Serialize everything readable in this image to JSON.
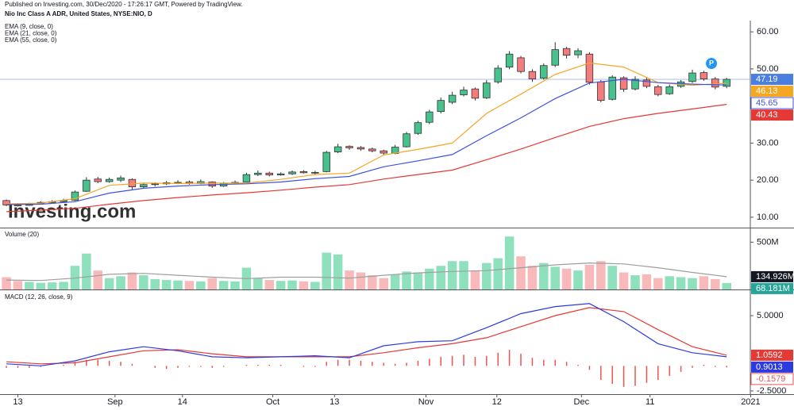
{
  "header": {
    "published": "Published on Investing.com, 30/Dec/2020 - 17:26:17 GMT, Powered by TradingView."
  },
  "watermark": "Investing.com",
  "chart_data": [
    {
      "type": "candlestick",
      "title": "Nio Inc Class A ADR, United States, NYSE:NIO, D",
      "marker_label": "P",
      "up_color": "#46c38c",
      "down_color": "#f47c7c",
      "last_color": "#4a7fe0",
      "xlim": [
        -0.56,
        65.07
      ],
      "ylim": [
        7.2,
        62.6
      ],
      "yticks": [
        {
          "value": 10,
          "label": "10.00"
        },
        {
          "value": 20,
          "label": "20.00"
        },
        {
          "value": 30,
          "label": "30.00"
        },
        {
          "value": 40,
          "label": "40.00"
        },
        {
          "value": 50,
          "label": "50.00"
        },
        {
          "value": 60,
          "label": "60.00"
        }
      ],
      "candles": [
        [
          14.5,
          14.8,
          13.0,
          13.3
        ],
        [
          13.3,
          13.8,
          12.9,
          13.2
        ],
        [
          13.2,
          13.9,
          13.1,
          13.6
        ],
        [
          13.6,
          14.3,
          13.4,
          14.0
        ],
        [
          14.0,
          14.6,
          13.8,
          14.2
        ],
        [
          14.2,
          15.0,
          14.0,
          14.5
        ],
        [
          14.6,
          17.2,
          14.4,
          16.8
        ],
        [
          17.0,
          20.8,
          16.8,
          20.0
        ],
        [
          20.3,
          20.9,
          19.2,
          19.6
        ],
        [
          19.6,
          20.7,
          19.3,
          20.2
        ],
        [
          20.0,
          21.2,
          19.5,
          20.6
        ],
        [
          20.2,
          20.5,
          17.5,
          18.2
        ],
        [
          18.2,
          19.3,
          17.9,
          18.8
        ],
        [
          18.8,
          19.4,
          18.3,
          19.0
        ],
        [
          19.0,
          19.8,
          18.7,
          19.3
        ],
        [
          19.2,
          20.0,
          18.9,
          19.4
        ],
        [
          19.5,
          19.9,
          18.8,
          19.1
        ],
        [
          19.1,
          20.2,
          18.9,
          19.6
        ],
        [
          19.5,
          19.7,
          17.9,
          18.4
        ],
        [
          18.4,
          19.5,
          18.2,
          19.2
        ],
        [
          19.2,
          19.9,
          18.9,
          19.4
        ],
        [
          19.5,
          22.0,
          19.4,
          21.5
        ],
        [
          21.5,
          22.6,
          21.1,
          21.9
        ],
        [
          21.9,
          22.3,
          21.0,
          21.4
        ],
        [
          21.4,
          22.1,
          21.2,
          21.7
        ],
        [
          21.7,
          22.6,
          21.4,
          22.2
        ],
        [
          22.3,
          22.7,
          21.8,
          22.0
        ],
        [
          22.0,
          22.5,
          21.6,
          22.1
        ],
        [
          22.3,
          27.9,
          22.1,
          27.5
        ],
        [
          27.6,
          29.8,
          27.3,
          29.0
        ],
        [
          29.1,
          29.4,
          28.2,
          28.7
        ],
        [
          28.8,
          29.2,
          27.9,
          28.4
        ],
        [
          28.4,
          28.8,
          27.5,
          27.9
        ],
        [
          27.9,
          28.2,
          26.8,
          27.3
        ],
        [
          27.2,
          29.5,
          27.0,
          28.9
        ],
        [
          29.0,
          33.0,
          28.8,
          32.5
        ],
        [
          32.6,
          36.0,
          32.2,
          35.5
        ],
        [
          35.6,
          39.0,
          35.1,
          38.4
        ],
        [
          38.5,
          42.3,
          38.0,
          41.5
        ],
        [
          41.0,
          43.8,
          40.5,
          42.9
        ],
        [
          43.0,
          45.2,
          42.6,
          44.3
        ],
        [
          44.6,
          45.0,
          41.5,
          42.1
        ],
        [
          42.2,
          47.0,
          41.9,
          46.2
        ],
        [
          46.5,
          51.0,
          46.0,
          50.2
        ],
        [
          50.5,
          54.8,
          49.9,
          54.0
        ],
        [
          53.0,
          53.5,
          48.8,
          49.3
        ],
        [
          49.3,
          49.9,
          46.5,
          47.3
        ],
        [
          47.5,
          51.5,
          47.1,
          50.9
        ],
        [
          51.0,
          57.2,
          50.5,
          55.2
        ],
        [
          55.5,
          56.0,
          52.8,
          53.7
        ],
        [
          53.8,
          55.6,
          52.9,
          54.9
        ],
        [
          54.0,
          54.5,
          45.8,
          46.4
        ],
        [
          46.5,
          47.0,
          41.0,
          41.5
        ],
        [
          41.8,
          48.3,
          41.5,
          47.8
        ],
        [
          47.6,
          48.0,
          43.8,
          44.5
        ],
        [
          44.6,
          48.0,
          44.2,
          47.2
        ],
        [
          47.0,
          47.8,
          44.8,
          45.3
        ],
        [
          45.2,
          45.7,
          42.6,
          43.1
        ],
        [
          43.3,
          45.8,
          43.0,
          45.2
        ],
        [
          45.3,
          47.0,
          44.9,
          46.5
        ],
        [
          46.6,
          49.8,
          46.2,
          48.9
        ],
        [
          49.0,
          49.5,
          46.8,
          47.3
        ],
        [
          47.3,
          47.8,
          44.5,
          45.1
        ],
        [
          45.3,
          47.6,
          44.8,
          47.19
        ]
      ],
      "series": [
        {
          "name": "EMA (9, close, 0)",
          "color": "#f5a623",
          "badge": "fill",
          "x": [
            0,
            3,
            6,
            9,
            12,
            15,
            18,
            21,
            24,
            27,
            30,
            33,
            36,
            39,
            42,
            45,
            48,
            51,
            54,
            57,
            60,
            63
          ],
          "values": [
            13.6,
            13.8,
            15.0,
            18.6,
            19.2,
            19.1,
            19.2,
            19.2,
            20.2,
            21.5,
            21.9,
            26.8,
            28.3,
            30.0,
            38.0,
            43.2,
            48.5,
            51.6,
            50.5,
            46.3,
            45.6,
            46.13
          ]
        },
        {
          "name": "EMA (21, close, 0)",
          "color": "#3f51e0",
          "badge": "outline",
          "x": [
            0,
            3,
            6,
            9,
            12,
            15,
            18,
            21,
            24,
            27,
            30,
            33,
            36,
            39,
            42,
            45,
            48,
            51,
            54,
            57,
            60,
            63
          ],
          "values": [
            13.4,
            13.5,
            14.2,
            16.5,
            17.8,
            18.4,
            18.8,
            19.0,
            19.5,
            20.4,
            21.0,
            23.6,
            25.2,
            26.9,
            32.0,
            36.8,
            42.0,
            46.2,
            47.2,
            46.3,
            45.9,
            45.65
          ]
        },
        {
          "name": "EMA (55, close, 0)",
          "color": "#e53935",
          "badge": "fill",
          "x": [
            0,
            3,
            6,
            9,
            12,
            15,
            18,
            21,
            24,
            27,
            30,
            33,
            36,
            39,
            42,
            45,
            48,
            51,
            54,
            57,
            60,
            63
          ],
          "values": [
            11.5,
            11.9,
            12.4,
            13.5,
            14.5,
            15.3,
            16.0,
            16.6,
            17.3,
            18.1,
            18.8,
            20.3,
            21.5,
            22.7,
            25.5,
            28.4,
            31.5,
            34.5,
            36.6,
            38.0,
            39.2,
            40.43
          ]
        }
      ]
    },
    {
      "type": "bar",
      "title": "Volume (20)",
      "up_color": "#8fe0bd",
      "down_color": "#f7b9b9",
      "badge_color": "#26a69a",
      "xlim": [
        -0.56,
        65.07
      ],
      "ylim": [
        0,
        629
      ],
      "yticks": [
        {
          "value": 500,
          "label": "500M"
        }
      ],
      "values": [
        130,
        90,
        80,
        70,
        75,
        80,
        250,
        380,
        200,
        120,
        140,
        180,
        150,
        110,
        100,
        95,
        90,
        85,
        120,
        90,
        85,
        230,
        120,
        100,
        90,
        95,
        85,
        80,
        390,
        370,
        200,
        180,
        150,
        120,
        160,
        190,
        180,
        220,
        250,
        300,
        300,
        200,
        280,
        330,
        560,
        350,
        250,
        280,
        240,
        220,
        200,
        260,
        300,
        250,
        180,
        150,
        160,
        120,
        140,
        130,
        120,
        140,
        110,
        68.181
      ],
      "value_labels": {
        "63": "68.181M"
      },
      "series": [
        {
          "color": "#9e9e9e",
          "badge": "dark",
          "x": [
            0,
            3,
            6,
            9,
            12,
            15,
            18,
            21,
            24,
            27,
            30,
            33,
            36,
            39,
            42,
            45,
            48,
            51,
            54,
            57,
            60,
            63
          ],
          "values": [
            100,
            95,
            120,
            160,
            170,
            150,
            130,
            115,
            130,
            130,
            120,
            150,
            175,
            190,
            200,
            230,
            260,
            280,
            270,
            230,
            180,
            134.926
          ],
          "value_labels": {
            "21": "134.926M"
          }
        }
      ]
    },
    {
      "type": "bar",
      "title": "MACD (12, 26, close, 9)",
      "color": "#ef5350",
      "xlim": [
        -0.56,
        65.07
      ],
      "ylim": [
        -2.82,
        7.37
      ],
      "yticks": [
        {
          "value": 5,
          "label": "5.0000"
        },
        {
          "value": -2.5,
          "label": "-2.5000"
        }
      ],
      "xticks": [
        {
          "value": 1,
          "label": "13"
        },
        {
          "value": 9.5,
          "label": "Sep"
        },
        {
          "value": 15.4,
          "label": "14"
        },
        {
          "value": 23.3,
          "label": "Oct"
        },
        {
          "value": 28.7,
          "label": "13"
        },
        {
          "value": 36.7,
          "label": "Nov"
        },
        {
          "value": 42.9,
          "label": "12"
        },
        {
          "value": 50.3,
          "label": "Dec"
        },
        {
          "value": 56.3,
          "label": "11"
        },
        {
          "value": 65.1,
          "label": "2021"
        }
      ],
      "values": [
        -0.2,
        -0.2,
        -0.2,
        -0.1,
        0.0,
        0.1,
        0.4,
        0.6,
        0.6,
        0.5,
        0.4,
        0.2,
        0.0,
        -0.2,
        -0.3,
        -0.2,
        -0.1,
        -0.1,
        -0.2,
        -0.1,
        0.0,
        0.1,
        0.1,
        0.1,
        0.1,
        0.0,
        -0.1,
        -0.1,
        0.4,
        0.6,
        0.6,
        0.5,
        0.4,
        0.3,
        0.2,
        0.3,
        0.5,
        0.7,
        0.9,
        1.0,
        1.1,
        0.9,
        1.0,
        1.3,
        1.6,
        1.2,
        0.8,
        0.6,
        0.6,
        0.4,
        0.1,
        -0.4,
        -1.4,
        -1.8,
        -2.1,
        -2.0,
        -1.7,
        -1.4,
        -1.0,
        -0.6,
        -0.2,
        0.1,
        -0.1,
        -0.1579
      ],
      "series": [
        {
          "color": "#e53935",
          "badge": "fill",
          "x": [
            0,
            3,
            6,
            9,
            12,
            15,
            18,
            21,
            24,
            27,
            30,
            33,
            36,
            39,
            42,
            45,
            48,
            51,
            54,
            57,
            60,
            63
          ],
          "values": [
            0.4,
            0.2,
            0.3,
            0.9,
            1.5,
            1.6,
            1.2,
            0.9,
            0.9,
            0.9,
            0.9,
            1.3,
            1.8,
            2.2,
            2.8,
            3.9,
            5.0,
            5.8,
            5.4,
            3.6,
            1.9,
            1.0592
          ]
        },
        {
          "color": "#2b3be0",
          "badge": "fill",
          "x": [
            0,
            3,
            6,
            9,
            12,
            15,
            18,
            21,
            24,
            27,
            30,
            33,
            36,
            39,
            42,
            45,
            48,
            51,
            54,
            57,
            60,
            63
          ],
          "values": [
            0.2,
            0.0,
            0.5,
            1.4,
            1.9,
            1.5,
            0.9,
            0.8,
            0.9,
            1.0,
            0.8,
            2.0,
            2.4,
            2.5,
            3.8,
            5.2,
            5.9,
            6.2,
            4.4,
            2.2,
            1.3,
            0.9013
          ]
        }
      ]
    }
  ]
}
